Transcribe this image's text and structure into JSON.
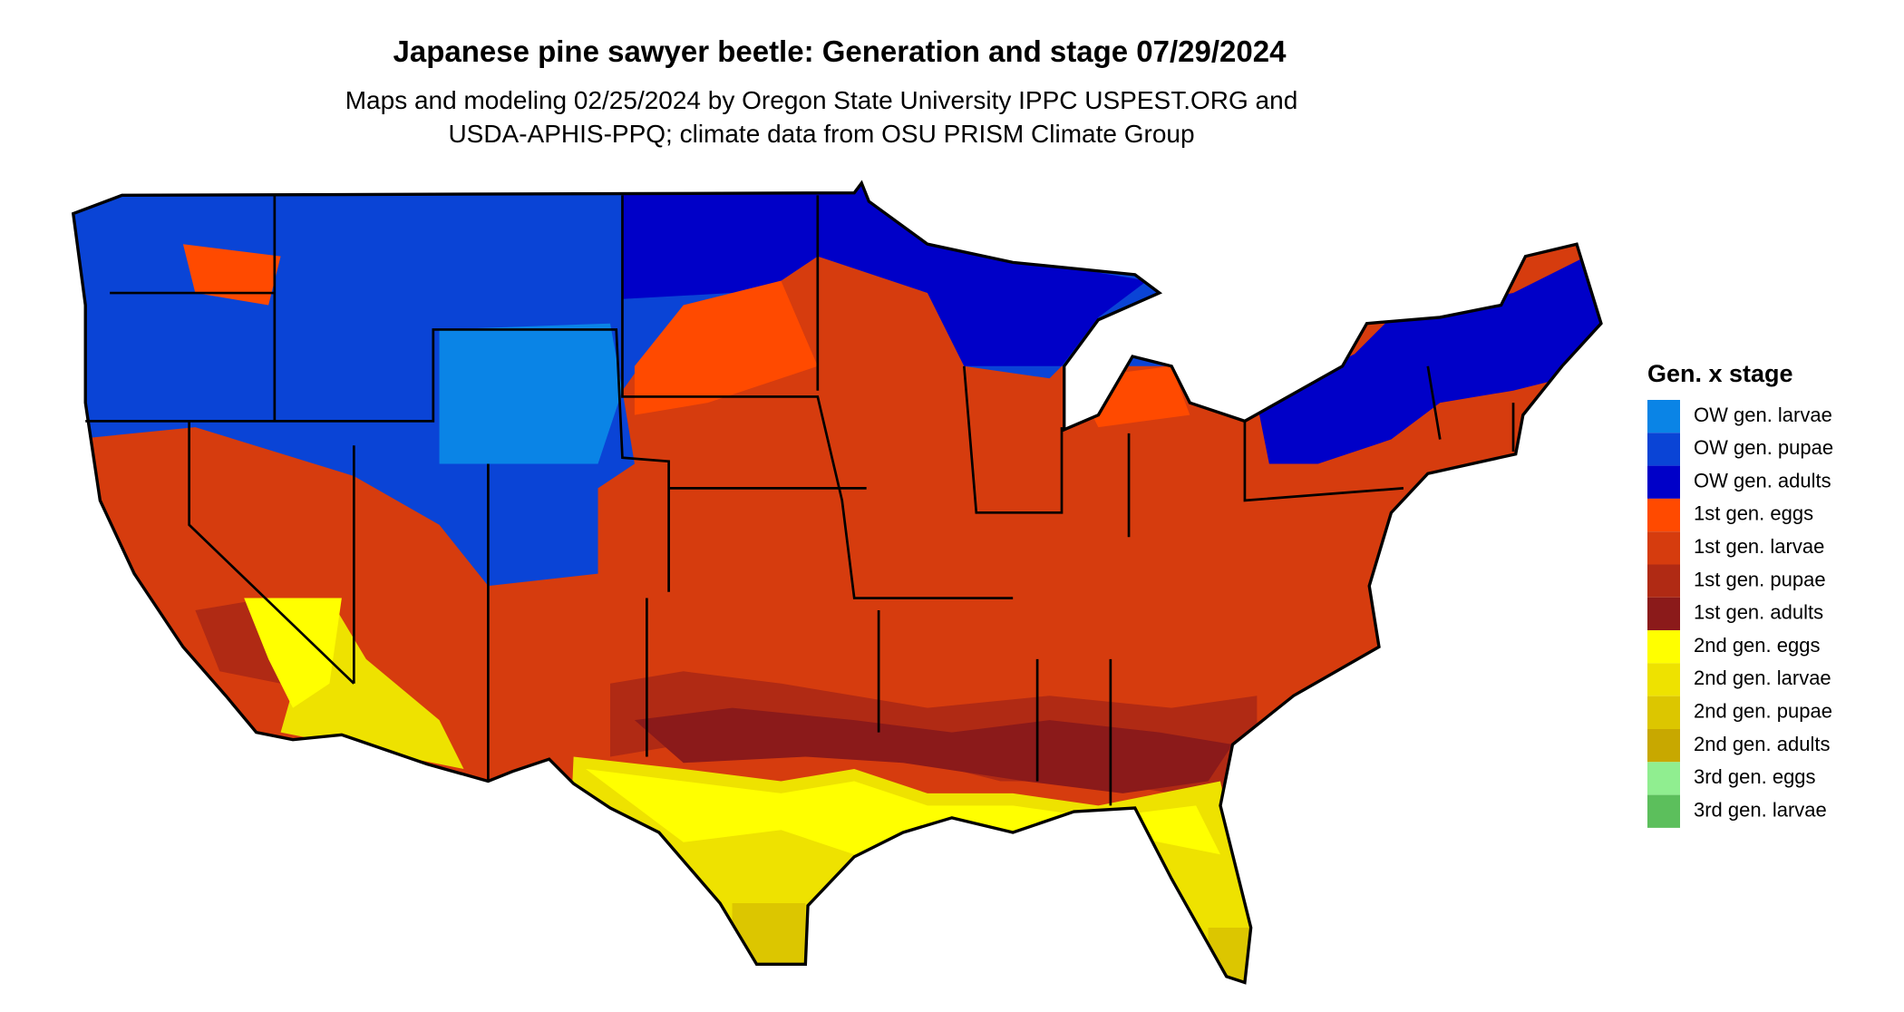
{
  "header": {
    "title": "Japanese pine sawyer beetle: Generation and stage 07/29/2024",
    "subtitle_lines": [
      "Maps and modeling 02/25/2024 by Oregon State University IPPC USPEST.ORG and",
      "USDA-APHIS-PPQ; climate data from OSU PRISM Climate Group"
    ]
  },
  "legend": {
    "title": "Gen. x stage",
    "items": [
      {
        "label": "OW gen. larvae",
        "color": "#0a84e6"
      },
      {
        "label": "OW gen. pupae",
        "color": "#0a44d6"
      },
      {
        "label": "OW gen. adults",
        "color": "#0000c8"
      },
      {
        "label": "1st gen. eggs",
        "color": "#ff4a00"
      },
      {
        "label": "1st gen. larvae",
        "color": "#d63c0e"
      },
      {
        "label": "1st gen. pupae",
        "color": "#b02a14"
      },
      {
        "label": "1st gen. adults",
        "color": "#8b1a1a"
      },
      {
        "label": "2nd gen. eggs",
        "color": "#ffff00"
      },
      {
        "label": "2nd gen. larvae",
        "color": "#eee200"
      },
      {
        "label": "2nd gen. pupae",
        "color": "#dcc600"
      },
      {
        "label": "2nd gen. adults",
        "color": "#c8a800"
      },
      {
        "label": "3rd gen. eggs",
        "color": "#90ee90"
      },
      {
        "label": "3rd gen. larvae",
        "color": "#5cbf5c"
      }
    ]
  }
}
